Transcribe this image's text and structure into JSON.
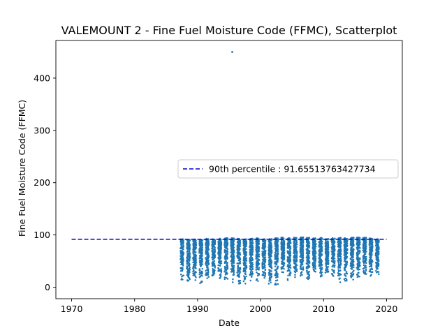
{
  "chart_data": {
    "type": "scatter",
    "title": "VALEMOUNT 2 - Fine Fuel Moisture Code (FFMC), Scatterplot",
    "xlabel": "Date",
    "ylabel": "Fine Fuel Moisture Code (FFMC)",
    "xlim": [
      1967.5,
      2022.5
    ],
    "ylim": [
      -22,
      472
    ],
    "xticks": [
      1970,
      1980,
      1990,
      2000,
      2010,
      2020
    ],
    "yticks": [
      0,
      100,
      200,
      300,
      400
    ],
    "grid": false,
    "legend_position": "center-right",
    "point_color": "#1f77b4",
    "line_color": "#0000cd",
    "percentile_line": {
      "label": "90th percentile : 91.65513763427734",
      "value": 91.65513763427734,
      "x_range": [
        1970,
        2020
      ],
      "style": "dashed"
    },
    "seasons": {
      "years": [
        1987,
        1988,
        1989,
        1990,
        1991,
        1992,
        1993,
        1994,
        1995,
        1996,
        1997,
        1998,
        1999,
        2000,
        2001,
        2002,
        2003,
        2004,
        2005,
        2006,
        2007,
        2008,
        2009,
        2010,
        2011,
        2012,
        2013,
        2014,
        2015,
        2016,
        2017,
        2018
      ],
      "season_min": [
        10,
        8,
        12,
        5,
        15,
        20,
        9,
        12,
        6,
        3,
        2,
        8,
        10,
        10,
        3,
        1,
        25,
        12,
        15,
        18,
        10,
        22,
        15,
        20,
        14,
        6,
        8,
        14,
        12,
        18,
        20,
        22
      ],
      "season_max": [
        92,
        91,
        93,
        92,
        93,
        92,
        93,
        94,
        95,
        93,
        92,
        93,
        94,
        92,
        93,
        94,
        95,
        94,
        95,
        96,
        95,
        94,
        95,
        93,
        94,
        95,
        94,
        95,
        96,
        95,
        94,
        93
      ],
      "season_start_fraction": 0.28,
      "season_end_fraction": 0.78,
      "points_per_season": 150
    },
    "outliers": [
      {
        "x": 1995.5,
        "y": 450
      }
    ]
  }
}
